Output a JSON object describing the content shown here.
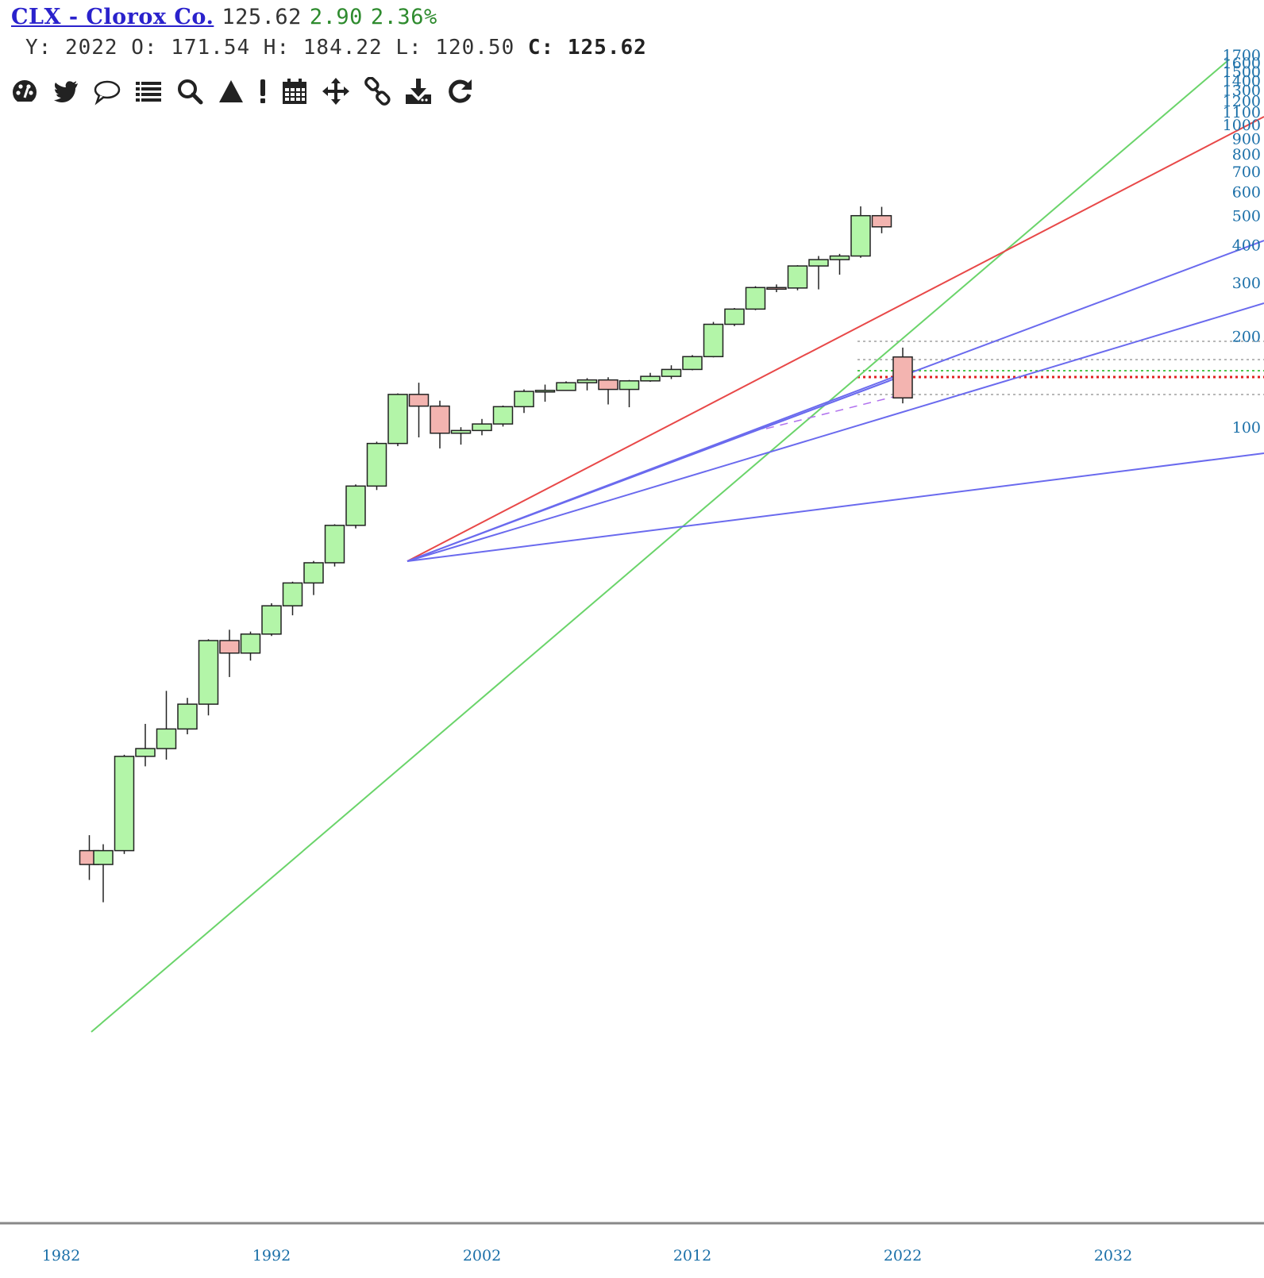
{
  "header": {
    "title": "CLX - Clorox Co.",
    "price": "125.62",
    "change": "2.90",
    "change_pct": "2.36%",
    "ohlc": {
      "y_label": "Y:",
      "year": "2022",
      "o_label": "O:",
      "open": "171.54",
      "h_label": "H:",
      "high": "184.22",
      "l_label": "L:",
      "low": "120.50",
      "c_label": "C:",
      "close": "125.62"
    }
  },
  "toolbar": {
    "icons": [
      "palette-icon",
      "twitter-icon",
      "comment-icon",
      "list-icon",
      "search-icon",
      "triangle-icon",
      "exclamation-icon",
      "calendar-icon",
      "move-icon",
      "link-icon",
      "download-icon",
      "refresh-icon"
    ]
  },
  "colors": {
    "up_fill": "#b3f5a8",
    "down_fill": "#f3b4b0",
    "candle_stroke": "#222222",
    "axis_text": "#1a6fa8",
    "green_line": "#6ad46a",
    "red_line": "#e84848",
    "blue_line": "#7070ee"
  },
  "chart_data": {
    "type": "candlestick",
    "interval": "yearly",
    "scale": "log",
    "x_ticks": [
      "1982",
      "1992",
      "2002",
      "2012",
      "2022",
      "2032"
    ],
    "y_ticks": [
      "100",
      "200",
      "300",
      "400",
      "500",
      "600",
      "700",
      "800",
      "900",
      "1000",
      "1100",
      "1200",
      "1300",
      "1400",
      "1500",
      "1600",
      "1700"
    ],
    "candles": [
      {
        "year": 1983,
        "open": 4.0,
        "high": 4.5,
        "low": 3.2,
        "close": 3.6
      },
      {
        "year": 1984,
        "open": 3.6,
        "high": 4.2,
        "low": 2.7,
        "close": 4.0
      },
      {
        "year": 1985,
        "open": 4.0,
        "high": 8.3,
        "low": 3.9,
        "close": 8.2
      },
      {
        "year": 1986,
        "open": 8.2,
        "high": 10.5,
        "low": 7.6,
        "close": 8.7
      },
      {
        "year": 1987,
        "open": 8.7,
        "high": 13.5,
        "low": 8.0,
        "close": 10.1
      },
      {
        "year": 1988,
        "open": 10.1,
        "high": 12.8,
        "low": 9.7,
        "close": 12.2
      },
      {
        "year": 1989,
        "open": 12.2,
        "high": 20.0,
        "low": 11.2,
        "close": 19.8
      },
      {
        "year": 1990,
        "open": 19.8,
        "high": 21.5,
        "low": 15.0,
        "close": 18.0
      },
      {
        "year": 1991,
        "open": 18.0,
        "high": 21.2,
        "low": 17.0,
        "close": 20.8
      },
      {
        "year": 1992,
        "open": 20.8,
        "high": 26.3,
        "low": 20.5,
        "close": 25.8
      },
      {
        "year": 1993,
        "open": 25.8,
        "high": 31.0,
        "low": 24.0,
        "close": 30.7
      },
      {
        "year": 1994,
        "open": 30.7,
        "high": 36.3,
        "low": 28.0,
        "close": 35.8
      },
      {
        "year": 1995,
        "open": 35.8,
        "high": 48.0,
        "low": 34.8,
        "close": 47.6
      },
      {
        "year": 1996,
        "open": 47.6,
        "high": 65.0,
        "low": 46.5,
        "close": 64.2
      },
      {
        "year": 1997,
        "open": 64.2,
        "high": 90.0,
        "low": 62.3,
        "close": 88.8
      },
      {
        "year": 1998,
        "open": 88.8,
        "high": 130.0,
        "low": 87.0,
        "close": 129.0
      },
      {
        "year": 1999,
        "open": 129.0,
        "high": 141.0,
        "low": 93.0,
        "close": 118.0
      },
      {
        "year": 2000,
        "open": 118.0,
        "high": 123.0,
        "low": 85.5,
        "close": 96.0
      },
      {
        "year": 2001,
        "open": 96.0,
        "high": 100.5,
        "low": 88.0,
        "close": 98.0
      },
      {
        "year": 2002,
        "open": 98.0,
        "high": 107.0,
        "low": 94.5,
        "close": 103.0
      },
      {
        "year": 2003,
        "open": 103.0,
        "high": 118.5,
        "low": 101.0,
        "close": 117.5
      },
      {
        "year": 2004,
        "open": 117.5,
        "high": 134.0,
        "low": 112.0,
        "close": 132.0
      },
      {
        "year": 2005,
        "open": 132.0,
        "high": 139.0,
        "low": 122.0,
        "close": 133.0
      },
      {
        "year": 2006,
        "open": 133.0,
        "high": 142.5,
        "low": 133.0,
        "close": 141.0
      },
      {
        "year": 2007,
        "open": 141.0,
        "high": 146.0,
        "low": 133.0,
        "close": 144.0
      },
      {
        "year": 2008,
        "open": 144.0,
        "high": 147.0,
        "low": 119.5,
        "close": 134.0
      },
      {
        "year": 2009,
        "open": 134.0,
        "high": 144.0,
        "low": 117.0,
        "close": 143.0
      },
      {
        "year": 2010,
        "open": 143.0,
        "high": 152.0,
        "low": 142.0,
        "close": 148.0
      },
      {
        "year": 2011,
        "open": 148.0,
        "high": 161.0,
        "low": 145.0,
        "close": 156.0
      },
      {
        "year": 2012,
        "open": 156.0,
        "high": 174.0,
        "low": 155.0,
        "close": 172.0
      },
      {
        "year": 2013,
        "open": 172.0,
        "high": 224.0,
        "low": 171.0,
        "close": 220.0
      },
      {
        "year": 2014,
        "open": 220.0,
        "high": 249.0,
        "low": 217.0,
        "close": 247.0
      },
      {
        "year": 2015,
        "open": 247.0,
        "high": 294.0,
        "low": 245.0,
        "close": 291.0
      },
      {
        "year": 2016,
        "open": 291.0,
        "high": 298.0,
        "low": 281.0,
        "close": 290.0
      },
      {
        "year": 2017,
        "open": 290.0,
        "high": 345.0,
        "low": 285.0,
        "close": 343.0
      },
      {
        "year": 2018,
        "open": 343.0,
        "high": 370.0,
        "low": 287.0,
        "close": 360.0
      },
      {
        "year": 2019,
        "open": 360.0,
        "high": 376.0,
        "low": 321.0,
        "close": 370.0
      },
      {
        "year": 2020,
        "open": 370.0,
        "high": 540.0,
        "low": 365.0,
        "close": 503.0
      },
      {
        "year": 2021,
        "open": 503.0,
        "high": 538.0,
        "low": 440.0,
        "close": 462.0
      },
      {
        "year": 2022,
        "open": 171.54,
        "high": 184.22,
        "low": 120.5,
        "close": 125.62
      }
    ]
  }
}
